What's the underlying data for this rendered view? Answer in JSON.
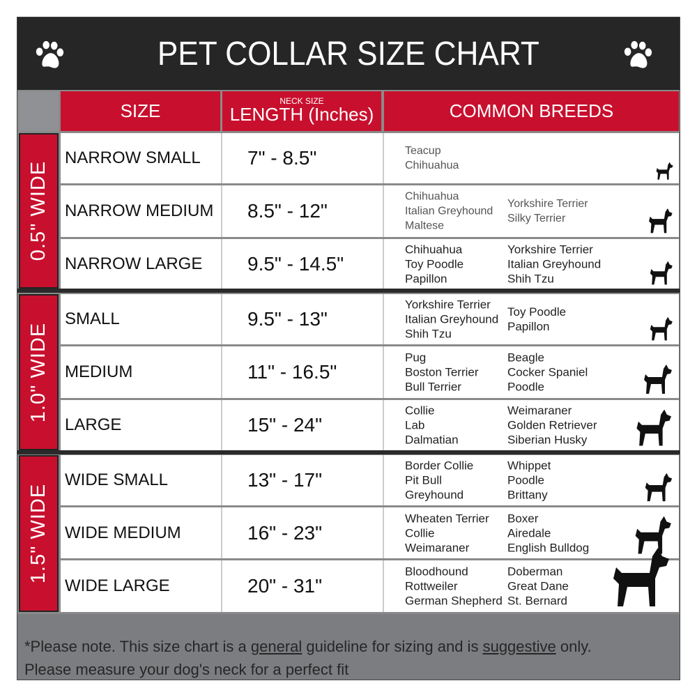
{
  "title": "PET COLLAR SIZE CHART",
  "icons": {
    "left": "paw-print-icon",
    "right": "paw-print-icon"
  },
  "colors": {
    "header_bg": "#262626",
    "accent_red": "#c8102e",
    "footer_bg": "#7b7d80"
  },
  "columns": {
    "size": "SIZE",
    "length_super": "NECK SIZE",
    "length": "LENGTH (Inches)",
    "breeds": "COMMON BREEDS"
  },
  "groups": [
    {
      "label": "0.5\" WIDE",
      "rows": [
        {
          "size": "NARROW SMALL",
          "length": "7\" - 8.5\"",
          "breeds1": [
            "Teacup",
            "Chihuahua"
          ],
          "breeds2": []
        },
        {
          "size": "NARROW MEDIUM",
          "length": "8.5\" - 12\"",
          "breeds1": [
            "Chihuahua",
            "Italian Greyhound",
            "Maltese"
          ],
          "breeds2": [
            "Yorkshire Terrier",
            "Silky Terrier"
          ]
        },
        {
          "size": "NARROW LARGE",
          "length": "9.5\" - 14.5\"",
          "breeds1": [
            "Chihuahua",
            "Toy Poodle",
            "Papillon"
          ],
          "breeds2": [
            "Yorkshire Terrier",
            "Italian Greyhound",
            "Shih Tzu"
          ]
        }
      ]
    },
    {
      "label": "1.0\" WIDE",
      "rows": [
        {
          "size": "SMALL",
          "length": "9.5\" - 13\"",
          "breeds1": [
            "Yorkshire Terrier",
            "Italian Greyhound",
            "Shih Tzu"
          ],
          "breeds2": [
            "Toy Poodle",
            "Papillon"
          ]
        },
        {
          "size": "MEDIUM",
          "length": "11\" - 16.5\"",
          "breeds1": [
            "Pug",
            "Boston Terrier",
            "Bull Terrier"
          ],
          "breeds2": [
            "Beagle",
            "Cocker Spaniel",
            "Poodle"
          ]
        },
        {
          "size": "LARGE",
          "length": "15\" - 24\"",
          "breeds1": [
            "Collie",
            "Lab",
            "Dalmatian"
          ],
          "breeds2": [
            "Weimaraner",
            "Golden Retriever",
            "Siberian Husky"
          ]
        }
      ]
    },
    {
      "label": "1.5\" WIDE",
      "rows": [
        {
          "size": "WIDE SMALL",
          "length": "13\" - 17\"",
          "breeds1": [
            "Border Collie",
            "Pit Bull",
            "Greyhound"
          ],
          "breeds2": [
            "Whippet",
            "Poodle",
            "Brittany"
          ]
        },
        {
          "size": "WIDE MEDIUM",
          "length": "16\" - 23\"",
          "breeds1": [
            "Wheaten Terrier",
            "Collie",
            "Weimaraner"
          ],
          "breeds2": [
            "Boxer",
            "Airedale",
            "English Bulldog"
          ]
        },
        {
          "size": "WIDE LARGE",
          "length": "20\" - 31\"",
          "breeds1": [
            "Bloodhound",
            "Rottweiler",
            "German Shepherd"
          ],
          "breeds2": [
            "Doberman",
            "Great Dane",
            "St. Bernard"
          ]
        }
      ]
    }
  ],
  "footer": {
    "p1": "*Please note. This size chart is a",
    "u1": "general",
    "p2": "guideline for sizing and is",
    "u2": "suggestive",
    "p3": "only.",
    "line2": "Please measure your dog's neck for a perfect fit"
  }
}
